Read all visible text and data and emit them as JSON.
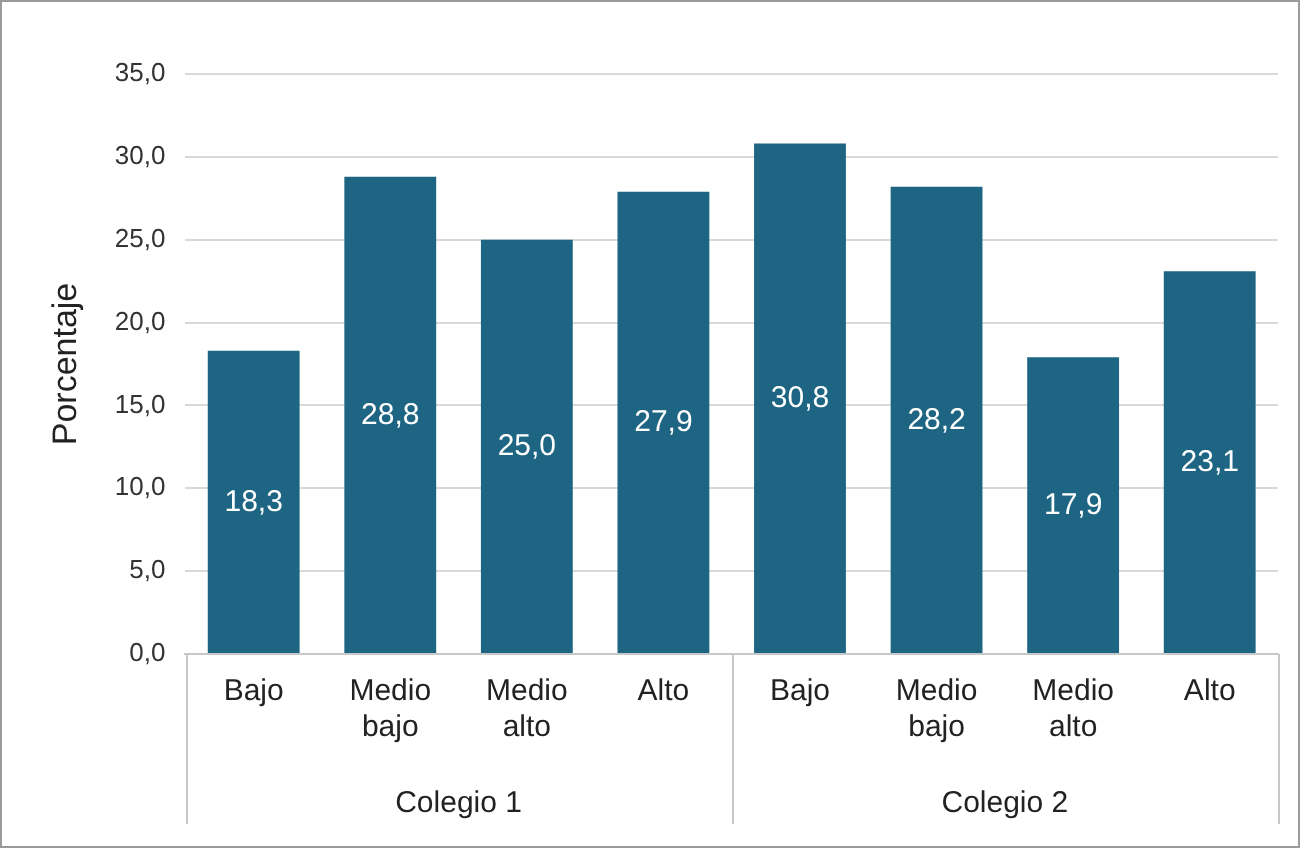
{
  "chart_data": {
    "type": "bar",
    "ylabel": "Porcentaje",
    "categories": [
      "Bajo",
      "Medio bajo",
      "Medio alto",
      "Alto",
      "Bajo",
      "Medio bajo",
      "Medio alto",
      "Alto"
    ],
    "values": [
      18.3,
      28.8,
      25.0,
      27.9,
      30.8,
      28.2,
      17.9,
      23.1
    ],
    "value_labels": [
      "18,3",
      "28,8",
      "25,0",
      "27,9",
      "30,8",
      "28,2",
      "17,9",
      "23,1"
    ],
    "color": "#1d6582",
    "ylim": [
      0,
      35
    ],
    "yticks": [
      {
        "value": 0,
        "label": "0,0"
      },
      {
        "value": 5,
        "label": "5,0"
      },
      {
        "value": 10,
        "label": "10,0"
      },
      {
        "value": 15,
        "label": "15,0"
      },
      {
        "value": 20,
        "label": "20,0"
      },
      {
        "value": 25,
        "label": "25,0"
      },
      {
        "value": 30,
        "label": "30,0"
      },
      {
        "value": 35,
        "label": "35,0"
      }
    ],
    "grid": "y",
    "legend": false,
    "annotations": [
      "Colegio 1",
      "Colegio 2"
    ]
  }
}
